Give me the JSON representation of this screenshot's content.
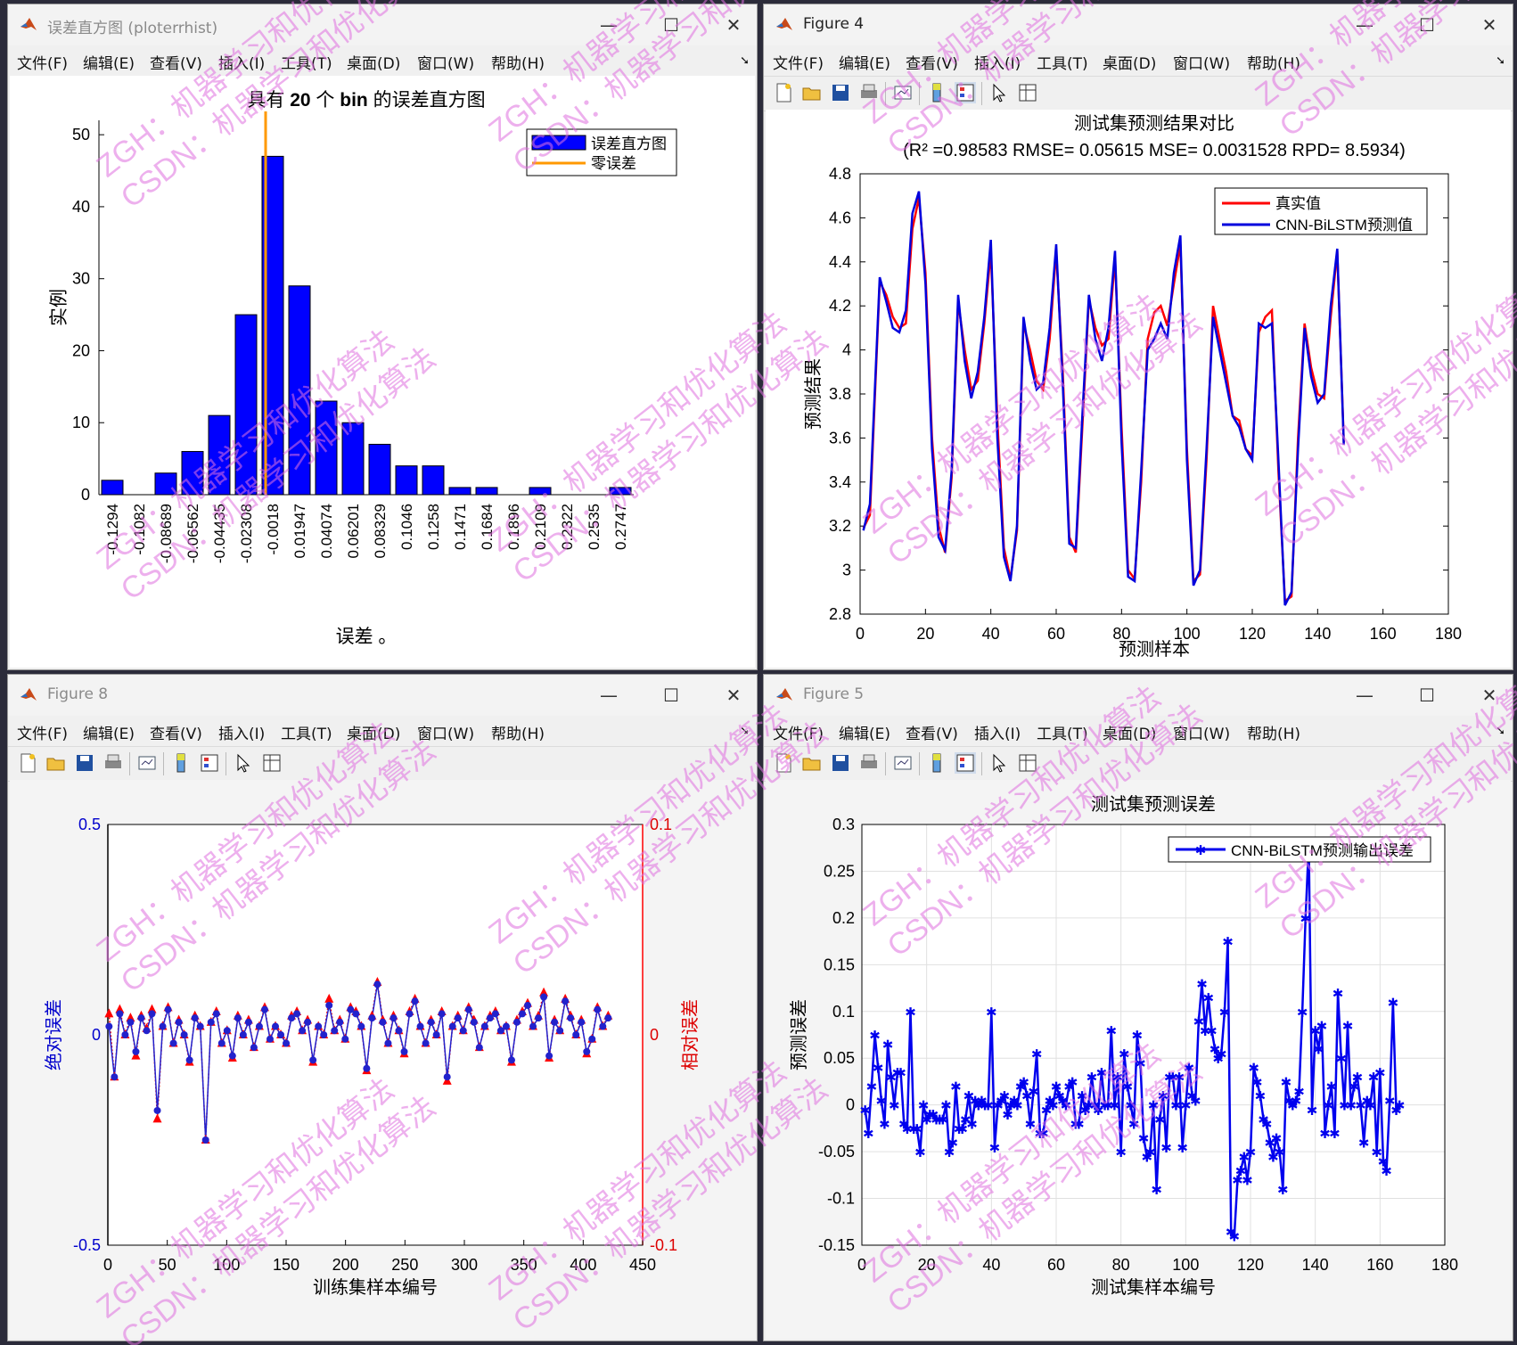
{
  "menus": [
    "文件(F)",
    "编辑(E)",
    "查看(V)",
    "插入(I)",
    "工具(T)",
    "桌面(D)",
    "窗口(W)",
    "帮助(H)"
  ],
  "windows": {
    "w1": {
      "title": "误差直方图 (ploterrhist)"
    },
    "w2": {
      "title": "Figure 4"
    },
    "w3": {
      "title": "Figure 8"
    },
    "w4": {
      "title": "Figure 5"
    }
  },
  "window_controls": {
    "minimize": "—",
    "maximize": "☐",
    "close": "✕"
  },
  "watermark": {
    "lines": [
      "ZGH：机器学习和优化算法",
      "CSDN：机器学习和优化算法"
    ],
    "color": "#e070e0"
  },
  "chart_data": [
    {
      "type": "bar",
      "title_prefix": "具有",
      "title_bold": "20",
      "title_mid": "个",
      "title_bold2": "bin",
      "title_suffix": "的误差直方图",
      "xlabel": "误差 。",
      "ylabel": "实例",
      "ylim": [
        0,
        52
      ],
      "yticks": [
        0,
        10,
        20,
        30,
        40,
        50
      ],
      "categories": [
        "-0.1294",
        "-0.1082",
        "-0.08689",
        "-0.06562",
        "-0.04435",
        "-0.02308",
        "-0.0018",
        "0.01947",
        "0.04074",
        "0.06201",
        "0.08329",
        "0.1046",
        "0.1258",
        "0.1471",
        "0.1684",
        "0.1896",
        "0.2109",
        "0.2322",
        "0.2535",
        "0.2747"
      ],
      "values": [
        2,
        0,
        3,
        6,
        11,
        25,
        47,
        29,
        13,
        10,
        7,
        4,
        4,
        1,
        1,
        0,
        1,
        0,
        0,
        1
      ],
      "zero_error_bin": 6,
      "legend": [
        "误差直方图",
        "零误差"
      ],
      "legend_position": "top-right",
      "colors": {
        "bar": "#0000ff",
        "zero": "#ff9900"
      }
    },
    {
      "type": "line",
      "title": "测试集预测结果对比",
      "subtitle": "(R² =0.98583 RMSE= 0.05615 MSE= 0.0031528 RPD= 8.5934)",
      "xlabel": "预测样本",
      "ylabel": "预测结果",
      "xlim": [
        0,
        180
      ],
      "ylim": [
        2.8,
        4.8
      ],
      "xticks": [
        0,
        20,
        40,
        60,
        80,
        100,
        120,
        140,
        160,
        180
      ],
      "yticks": [
        "2.8",
        "3",
        "3.2",
        "3.4",
        "3.6",
        "3.8",
        "4",
        "4.2",
        "4.4",
        "4.6",
        "4.8"
      ],
      "legend_position": "top-right",
      "series": [
        {
          "name": "真实值",
          "color": "#ff0000",
          "points": [
            [
              1,
              3.19
            ],
            [
              3,
              3.25
            ],
            [
              6,
              4.31
            ],
            [
              8,
              4.25
            ],
            [
              10,
              4.15
            ],
            [
              12,
              4.1
            ],
            [
              14,
              4.12
            ],
            [
              16,
              4.55
            ],
            [
              18,
              4.69
            ],
            [
              20,
              4.35
            ],
            [
              22,
              3.6
            ],
            [
              24,
              3.2
            ],
            [
              26,
              3.08
            ],
            [
              28,
              3.42
            ],
            [
              30,
              4.22
            ],
            [
              32,
              4.0
            ],
            [
              34,
              3.82
            ],
            [
              36,
              3.86
            ],
            [
              38,
              4.12
            ],
            [
              40,
              4.45
            ],
            [
              42,
              3.68
            ],
            [
              44,
              3.1
            ],
            [
              46,
              2.96
            ],
            [
              48,
              3.18
            ],
            [
              50,
              4.12
            ],
            [
              52,
              4.0
            ],
            [
              54,
              3.86
            ],
            [
              56,
              3.82
            ],
            [
              58,
              4.05
            ],
            [
              60,
              4.45
            ],
            [
              62,
              3.9
            ],
            [
              64,
              3.15
            ],
            [
              66,
              3.08
            ],
            [
              68,
              3.65
            ],
            [
              70,
              4.23
            ],
            [
              72,
              4.1
            ],
            [
              74,
              4.02
            ],
            [
              76,
              4.05
            ],
            [
              78,
              4.42
            ],
            [
              80,
              3.65
            ],
            [
              82,
              3.0
            ],
            [
              84,
              2.96
            ],
            [
              86,
              3.4
            ],
            [
              88,
              4.05
            ],
            [
              90,
              4.17
            ],
            [
              92,
              4.2
            ],
            [
              94,
              4.11
            ],
            [
              96,
              4.3
            ],
            [
              98,
              4.48
            ],
            [
              100,
              3.55
            ],
            [
              102,
              2.95
            ],
            [
              104,
              2.98
            ],
            [
              106,
              3.5
            ],
            [
              108,
              4.2
            ],
            [
              110,
              4.05
            ],
            [
              112,
              3.9
            ],
            [
              114,
              3.7
            ],
            [
              116,
              3.68
            ],
            [
              118,
              3.55
            ],
            [
              120,
              3.52
            ],
            [
              122,
              4.08
            ],
            [
              124,
              4.15
            ],
            [
              126,
              4.18
            ],
            [
              128,
              3.45
            ],
            [
              130,
              2.86
            ],
            [
              132,
              2.88
            ],
            [
              134,
              3.6
            ],
            [
              136,
              4.12
            ],
            [
              138,
              3.92
            ],
            [
              140,
              3.8
            ],
            [
              142,
              3.78
            ],
            [
              144,
              4.15
            ],
            [
              146,
              4.45
            ],
            [
              148,
              3.58
            ]
          ]
        },
        {
          "name": "CNN-BiLSTM预测值",
          "color": "#0000dd",
          "points": [
            [
              1,
              3.18
            ],
            [
              3,
              3.3
            ],
            [
              6,
              4.33
            ],
            [
              8,
              4.22
            ],
            [
              10,
              4.1
            ],
            [
              12,
              4.08
            ],
            [
              14,
              4.18
            ],
            [
              16,
              4.62
            ],
            [
              18,
              4.72
            ],
            [
              20,
              4.3
            ],
            [
              22,
              3.55
            ],
            [
              24,
              3.15
            ],
            [
              26,
              3.09
            ],
            [
              28,
              3.45
            ],
            [
              30,
              4.25
            ],
            [
              32,
              3.95
            ],
            [
              34,
              3.78
            ],
            [
              36,
              3.9
            ],
            [
              38,
              4.15
            ],
            [
              40,
              4.5
            ],
            [
              42,
              3.6
            ],
            [
              44,
              3.06
            ],
            [
              46,
              2.95
            ],
            [
              48,
              3.2
            ],
            [
              50,
              4.15
            ],
            [
              52,
              3.95
            ],
            [
              54,
              3.82
            ],
            [
              56,
              3.85
            ],
            [
              58,
              4.1
            ],
            [
              60,
              4.48
            ],
            [
              62,
              3.85
            ],
            [
              64,
              3.12
            ],
            [
              66,
              3.1
            ],
            [
              68,
              3.7
            ],
            [
              70,
              4.25
            ],
            [
              72,
              4.05
            ],
            [
              74,
              3.95
            ],
            [
              76,
              4.1
            ],
            [
              78,
              4.45
            ],
            [
              80,
              3.58
            ],
            [
              82,
              2.97
            ],
            [
              84,
              2.95
            ],
            [
              86,
              3.45
            ],
            [
              88,
              4.0
            ],
            [
              90,
              4.05
            ],
            [
              92,
              4.12
            ],
            [
              94,
              4.05
            ],
            [
              96,
              4.35
            ],
            [
              98,
              4.52
            ],
            [
              100,
              3.5
            ],
            [
              102,
              2.93
            ],
            [
              104,
              3.0
            ],
            [
              106,
              3.55
            ],
            [
              108,
              4.15
            ],
            [
              110,
              4.0
            ],
            [
              112,
              3.85
            ],
            [
              114,
              3.7
            ],
            [
              116,
              3.65
            ],
            [
              118,
              3.55
            ],
            [
              120,
              3.5
            ],
            [
              122,
              4.12
            ],
            [
              124,
              4.1
            ],
            [
              126,
              4.12
            ],
            [
              128,
              3.5
            ],
            [
              130,
              2.84
            ],
            [
              132,
              2.9
            ],
            [
              134,
              3.55
            ],
            [
              136,
              4.1
            ],
            [
              138,
              3.88
            ],
            [
              140,
              3.76
            ],
            [
              142,
              3.8
            ],
            [
              144,
              4.2
            ],
            [
              146,
              4.46
            ],
            [
              148,
              3.57
            ]
          ]
        }
      ]
    },
    {
      "type": "line",
      "xlabel": "训练集样本编号",
      "ylabel_left": "绝对误差",
      "ylabel_right": "相对误差",
      "xlim": [
        0,
        450
      ],
      "ylim_left": [
        -0.5,
        0.5
      ],
      "ylim_right": [
        -0.1,
        0.1
      ],
      "xticks": [
        0,
        50,
        100,
        150,
        200,
        250,
        300,
        350,
        400,
        450
      ],
      "yticks_left": [
        "-0.5",
        "0",
        "0.5"
      ],
      "yticks_right": [
        "-0.1",
        "0",
        "0.1"
      ],
      "colors": {
        "abs": "#2222cc",
        "rel": "#ff0000"
      },
      "series": [
        {
          "name": "abs",
          "values": [
            0.02,
            -0.1,
            0.05,
            0.0,
            0.03,
            -0.04,
            0.04,
            0.01,
            0.05,
            -0.18,
            0.02,
            0.06,
            -0.02,
            0.03,
            0.0,
            -0.06,
            0.04,
            0.02,
            -0.25,
            0.03,
            0.05,
            -0.02,
            0.01,
            -0.05,
            0.04,
            0.0,
            0.03,
            -0.03,
            0.02,
            0.06,
            -0.01,
            0.02,
            0.0,
            -0.02,
            0.04,
            0.05,
            0.01,
            0.03,
            -0.06,
            0.02,
            0.0,
            0.07,
            0.01,
            0.03,
            -0.01,
            0.06,
            0.05,
            0.02,
            -0.08,
            0.04,
            0.12,
            0.03,
            -0.02,
            0.04,
            0.01,
            -0.04,
            0.05,
            0.08,
            0.02,
            -0.02,
            0.03,
            0.0,
            0.05,
            -0.1,
            0.02,
            0.04,
            0.01,
            0.06,
            0.03,
            -0.03,
            0.02,
            0.04,
            0.05,
            0.01,
            0.02,
            -0.06,
            0.03,
            0.05,
            0.07,
            0.02,
            0.04,
            0.09,
            -0.05,
            0.03,
            0.01,
            0.08,
            0.04,
            0.0,
            0.03,
            -0.04,
            -0.01,
            0.06,
            0.02,
            0.04
          ]
        },
        {
          "name": "rel",
          "values": [
            0.01,
            -0.02,
            0.012,
            0.0,
            0.008,
            -0.01,
            0.009,
            0.003,
            0.012,
            -0.04,
            0.004,
            0.013,
            -0.004,
            0.007,
            0.0,
            -0.013,
            0.009,
            0.004,
            -0.05,
            0.006,
            0.011,
            -0.004,
            0.002,
            -0.011,
            0.009,
            0.0,
            0.007,
            -0.006,
            0.004,
            0.013,
            -0.002,
            0.004,
            0.0,
            -0.004,
            0.009,
            0.011,
            0.002,
            0.007,
            -0.013,
            0.004,
            0.0,
            0.017,
            0.002,
            0.007,
            -0.002,
            0.013,
            0.011,
            0.004,
            -0.017,
            0.009,
            0.025,
            0.007,
            -0.004,
            0.009,
            0.002,
            -0.009,
            0.011,
            0.017,
            0.004,
            -0.004,
            0.007,
            0.0,
            0.011,
            -0.022,
            0.004,
            0.009,
            0.002,
            0.013,
            0.007,
            -0.006,
            0.004,
            0.009,
            0.011,
            0.002,
            0.004,
            -0.013,
            0.007,
            0.011,
            0.015,
            0.004,
            0.009,
            0.02,
            -0.011,
            0.007,
            0.002,
            0.017,
            0.009,
            0.0,
            0.007,
            -0.009,
            -0.002,
            0.013,
            0.004,
            0.009
          ]
        }
      ]
    },
    {
      "type": "line",
      "title": "测试集预测误差",
      "xlabel": "测试集样本编号",
      "ylabel": "预测误差",
      "xlim": [
        0,
        180
      ],
      "ylim": [
        -0.15,
        0.3
      ],
      "xticks": [
        0,
        20,
        40,
        60,
        80,
        100,
        120,
        140,
        160,
        180
      ],
      "yticks": [
        "-0.15",
        "-0.1",
        "-0.05",
        "0",
        "0.05",
        "0.1",
        "0.15",
        "0.2",
        "0.25",
        "0.3"
      ],
      "grid": true,
      "legend": [
        "CNN-BiLSTM预测输出误差"
      ],
      "legend_position": "top-right",
      "color": "#0000ee",
      "values": [
        -0.005,
        -0.03,
        0.02,
        0.075,
        0.04,
        0.005,
        -0.02,
        0.065,
        0.03,
        0.0,
        0.035,
        0.035,
        -0.02,
        -0.025,
        0.1,
        -0.025,
        -0.025,
        -0.05,
        0.0,
        -0.015,
        -0.01,
        -0.01,
        -0.015,
        -0.015,
        -0.015,
        0.0,
        -0.05,
        -0.04,
        0.02,
        -0.025,
        -0.025,
        -0.015,
        0.01,
        -0.02,
        0.005,
        0.0,
        0.005,
        0.0,
        0.0,
        0.1,
        -0.045,
        0.0,
        0.005,
        0.01,
        -0.01,
        0.0,
        0.005,
        0.0,
        0.02,
        0.025,
        0.01,
        -0.02,
        0.015,
        0.055,
        -0.03,
        -0.03,
        -0.005,
        0.005,
        0.0,
        0.02,
        0.01,
        0.005,
        0.0,
        0.02,
        0.025,
        -0.02,
        -0.02,
        0.01,
        -0.005,
        0.0,
        0.03,
        0.0,
        -0.005,
        0.035,
        0.0,
        0.0,
        0.08,
        0.0,
        0.03,
        -0.05,
        0.055,
        0.02,
        0.0,
        -0.02,
        0.075,
        0.045,
        -0.035,
        -0.055,
        -0.05,
        0.0,
        -0.09,
        -0.015,
        0.01,
        -0.045,
        0.03,
        0.03,
        0.0,
        0.03,
        -0.045,
        0.0,
        0.04,
        0.01,
        0.005,
        0.09,
        0.13,
        0.08,
        0.115,
        0.08,
        0.06,
        0.05,
        0.055,
        0.1,
        0.175,
        -0.135,
        -0.14,
        -0.08,
        -0.07,
        -0.055,
        -0.08,
        -0.05,
        0.04,
        0.025,
        0.01,
        -0.015,
        -0.02,
        -0.04,
        -0.055,
        -0.035,
        -0.05,
        -0.09,
        0.025,
        0.005,
        0.0,
        0.005,
        0.015,
        0.1,
        0.2,
        0.28,
        -0.005,
        0.08,
        0.06,
        0.085,
        -0.03,
        0.0,
        0.02,
        -0.03,
        0.12,
        0.05,
        0.0,
        0.085,
        0.0,
        0.02,
        0.03,
        0.0,
        -0.04,
        0.005,
        0.0,
        0.03,
        -0.05,
        0.035,
        -0.06,
        -0.07,
        0.005,
        0.11,
        -0.005,
        0.0
      ]
    }
  ]
}
